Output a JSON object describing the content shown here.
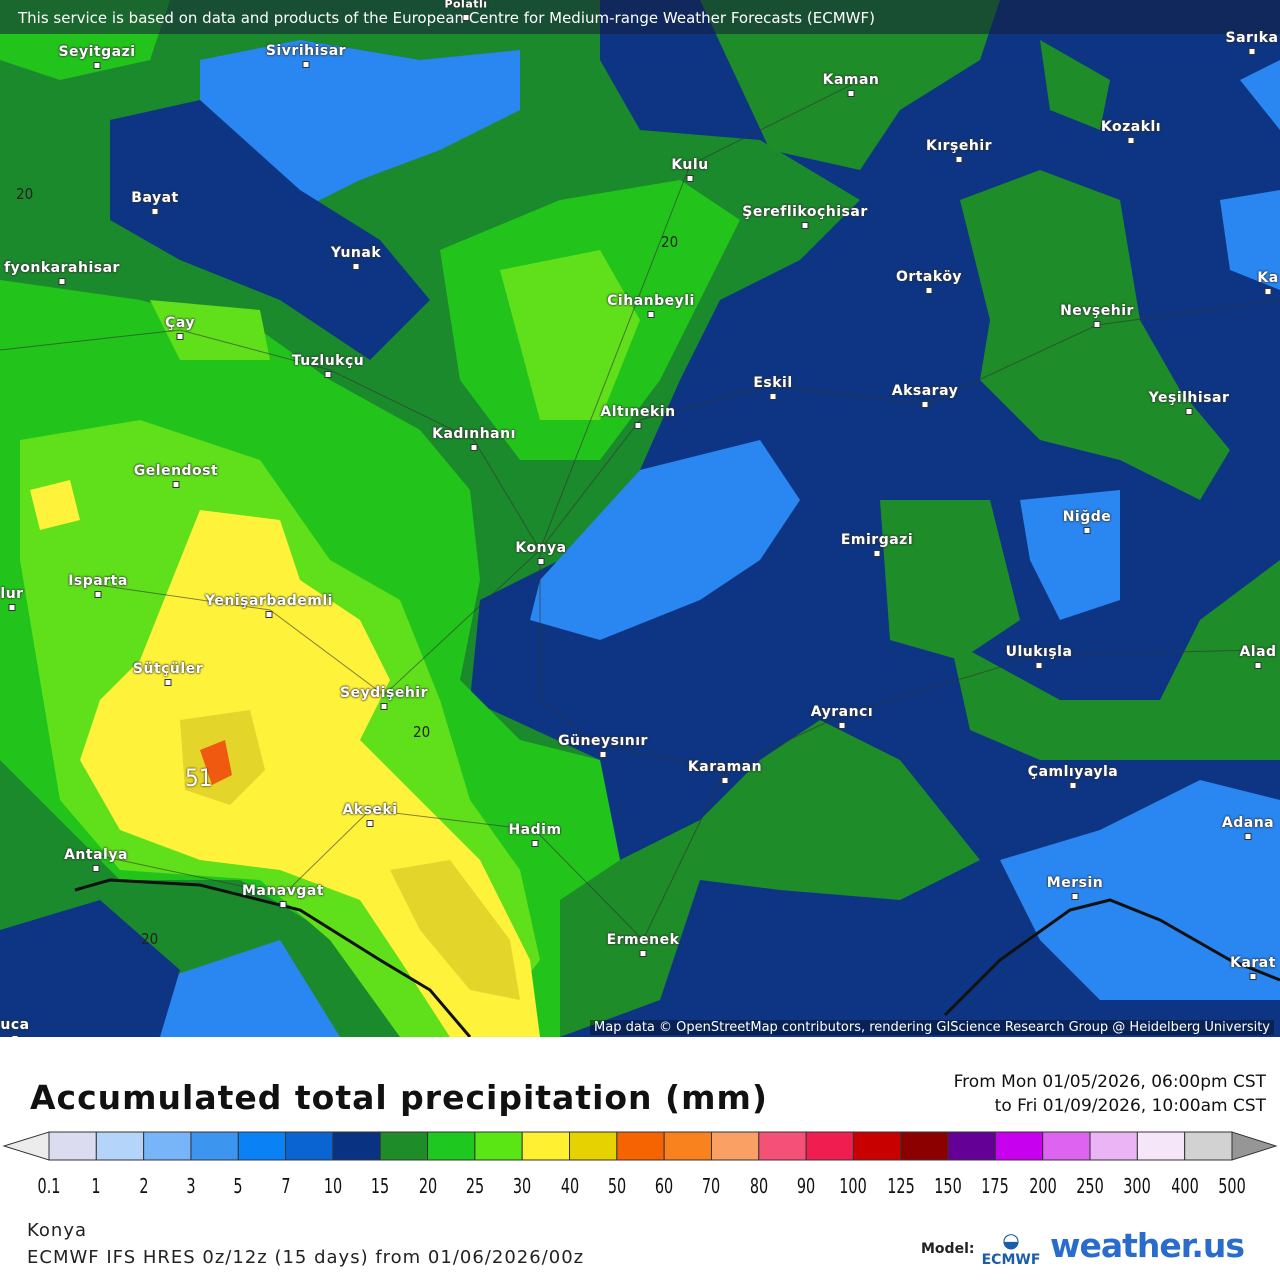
{
  "banner": "This service is based on data and products of the European Centre for Medium-range Weather Forecasts (ECMWF)",
  "attribution": "Map data © OpenStreetMap contributors, rendering GIScience Research Group @ Heidelberg University",
  "cities": [
    "Seyitgazi",
    "Sivrihisar",
    "Kaman",
    "Kozaklı",
    "Kırşehir",
    "Kulu",
    "Bayat",
    "Şereflikoçhisar",
    "Yunak",
    "Ortaköy",
    "fyonkarahisar",
    "Cihanbeyli",
    "Nevşehir",
    "Çay",
    "Tuzlukçu",
    "Eskil",
    "Aksaray",
    "Yeşilhisar",
    "Altınekin",
    "Kadınhanı",
    "Gelendost",
    "Niğde",
    "Emirgazi",
    "Konya",
    "Isparta",
    "lur",
    "Yenişarbademli",
    "Ulukışla",
    "Alad",
    "Sütçüler",
    "Seydişehir",
    "Ayrancı",
    "Güneysınır",
    "Karaman",
    "Çamlıyayla",
    "Akseki",
    "Adana",
    "Hadim",
    "Antalya",
    "Mersin",
    "Manavgat",
    "Ermenek",
    "Karat",
    "uca",
    "Sarıka",
    "Ka",
    "Polatlı"
  ],
  "contour_labels": [
    "20",
    "20",
    "20",
    "20",
    "51"
  ],
  "title": "Accumulated total precipitation (mm)",
  "range_from": "From Mon 01/05/2026, 06:00pm CST",
  "range_to": "to Fri 01/09/2026, 10:00am CST",
  "legend": {
    "ticks": [
      "0.1",
      "1",
      "2",
      "3",
      "5",
      "7",
      "10",
      "15",
      "20",
      "25",
      "30",
      "40",
      "50",
      "60",
      "70",
      "80",
      "90",
      "100",
      "125",
      "150",
      "175",
      "200",
      "250",
      "300",
      "400",
      "500"
    ],
    "colors": [
      "#dcdcf0",
      "#b4d4fa",
      "#78b4f8",
      "#3c96f0",
      "#0a82f5",
      "#0a64d2",
      "#0a3282",
      "#1e8c28",
      "#1ec81e",
      "#5ae614",
      "#fff032",
      "#e6d200",
      "#f56400",
      "#fa821e",
      "#faa064",
      "#f55078",
      "#f01e50",
      "#c80000",
      "#8c0000",
      "#640096",
      "#c800f0",
      "#dc64f0",
      "#ebb4f5",
      "#f5e6fa",
      "#d2d2d2"
    ],
    "under_color": "#ececec",
    "over_color": "#969696"
  },
  "location": "Konya",
  "run": "ECMWF IFS HRES 0z/12z (15 days) from 01/06/2026/00z",
  "model_label": "Model:",
  "logos": {
    "ecmwf": "ECMWF",
    "weather_us": "weather.us"
  }
}
